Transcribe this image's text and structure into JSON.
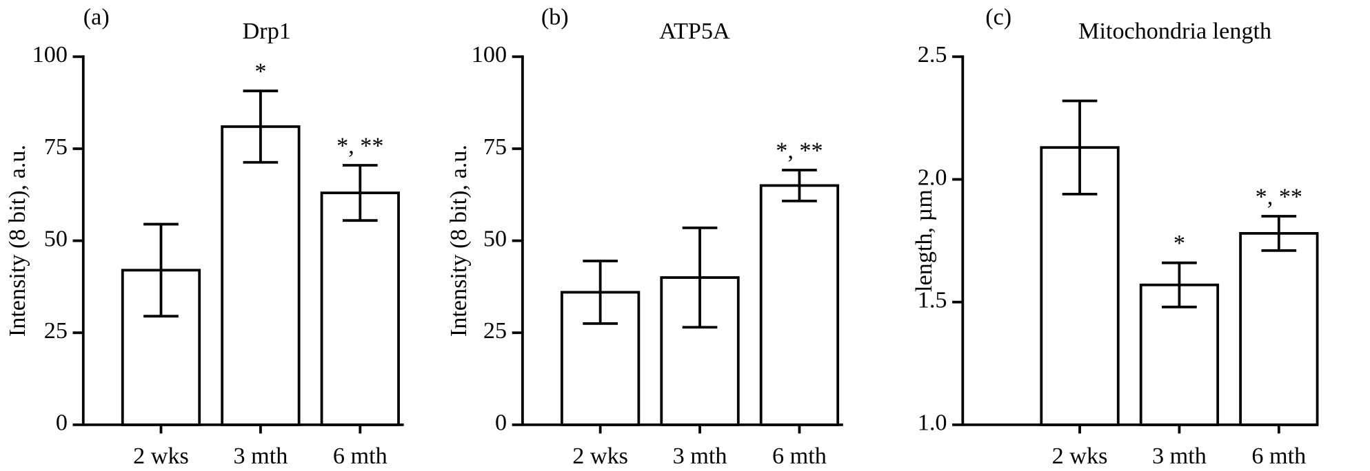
{
  "chart_data": [
    {
      "type": "bar",
      "panel_label": "(a)",
      "title": "Drp1",
      "y_label": "Intensity (8 bit), a.u.",
      "categories": [
        "2 wks",
        "3 mth",
        "6 mth"
      ],
      "values": [
        42,
        81,
        63
      ],
      "errors": [
        12.5,
        9.7,
        7.5
      ],
      "annotations": [
        null,
        "*",
        "*, **"
      ],
      "color": "#ffffff",
      "ylim": [
        0,
        100
      ],
      "yticks": [
        0,
        25,
        50,
        75,
        100
      ]
    },
    {
      "type": "bar",
      "panel_label": "(b)",
      "title": "ATP5A",
      "y_label": "Intensity (8 bit), a.u.",
      "categories": [
        "2 wks",
        "3 mth",
        "6 mth"
      ],
      "values": [
        36,
        40,
        65
      ],
      "errors": [
        8.5,
        13.5,
        4.2
      ],
      "annotations": [
        null,
        null,
        "*, **"
      ],
      "color": "#ffffff",
      "ylim": [
        0,
        100
      ],
      "yticks": [
        0,
        25,
        50,
        75,
        100
      ]
    },
    {
      "type": "bar",
      "panel_label": "(c)",
      "title": "Mitochondria length",
      "y_label": "length, µm",
      "categories": [
        "2 wks",
        "3 mth",
        "6 mth"
      ],
      "values": [
        2.13,
        1.57,
        1.78
      ],
      "errors": [
        0.19,
        0.09,
        0.07
      ],
      "annotations": [
        null,
        "*",
        "*, **"
      ],
      "color": "#ffffff",
      "ylim": [
        1,
        2.5
      ],
      "yticks": [
        {
          "value": 1,
          "label": "1.0"
        },
        {
          "value": 1.5,
          "label": "1.5"
        },
        {
          "value": 2,
          "label": "2.0"
        },
        {
          "value": 2.5,
          "label": "2.5"
        }
      ]
    }
  ]
}
